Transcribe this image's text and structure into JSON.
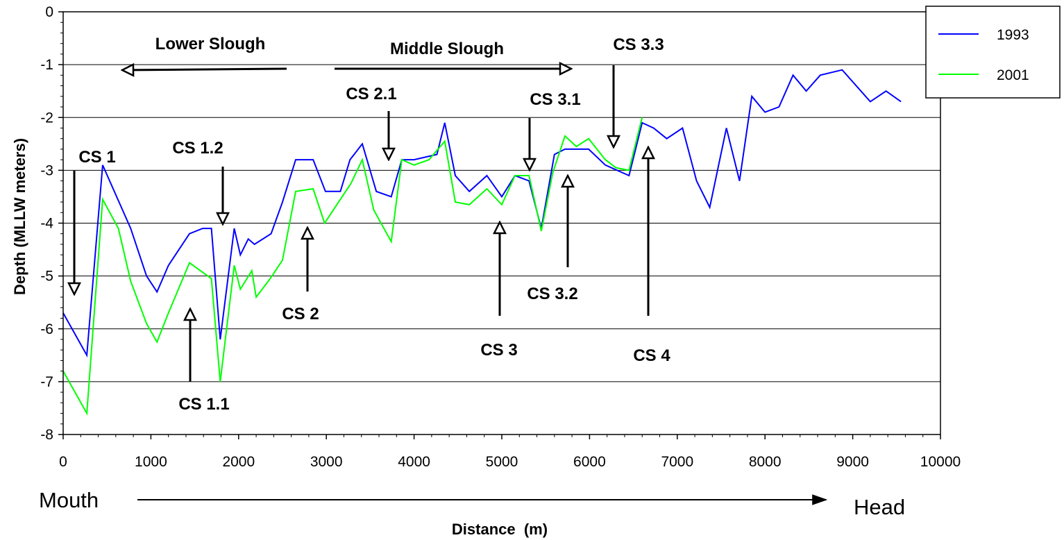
{
  "chart_data": {
    "type": "line",
    "title": "",
    "xlabel": "Distance  (m)",
    "ylabel": "Depth (MLLW meters)",
    "xlim": [
      0,
      10000
    ],
    "ylim": [
      -8,
      0
    ],
    "xticks": [
      0,
      1000,
      2000,
      3000,
      4000,
      5000,
      6000,
      7000,
      8000,
      9000,
      10000
    ],
    "yticks": [
      0,
      -1,
      -2,
      -3,
      -4,
      -5,
      -6,
      -7,
      -8
    ],
    "grid": "horizontal",
    "legend_position": "top-right",
    "series": [
      {
        "name": "1993",
        "color": "#0000ff",
        "points": [
          [
            0,
            -5.7
          ],
          [
            270,
            -6.5
          ],
          [
            450,
            -2.9
          ],
          [
            770,
            -4.1
          ],
          [
            950,
            -5.0
          ],
          [
            1070,
            -5.3
          ],
          [
            1200,
            -4.8
          ],
          [
            1440,
            -4.2
          ],
          [
            1590,
            -4.1
          ],
          [
            1690,
            -4.1
          ],
          [
            1790,
            -6.2
          ],
          [
            1950,
            -4.1
          ],
          [
            2020,
            -4.6
          ],
          [
            2110,
            -4.3
          ],
          [
            2180,
            -4.4
          ],
          [
            2370,
            -4.2
          ],
          [
            2500,
            -3.6
          ],
          [
            2650,
            -2.8
          ],
          [
            2850,
            -2.8
          ],
          [
            2990,
            -3.4
          ],
          [
            3160,
            -3.4
          ],
          [
            3270,
            -2.8
          ],
          [
            3410,
            -2.5
          ],
          [
            3570,
            -3.4
          ],
          [
            3740,
            -3.5
          ],
          [
            3860,
            -2.8
          ],
          [
            4000,
            -2.8
          ],
          [
            4260,
            -2.7
          ],
          [
            4350,
            -2.1
          ],
          [
            4470,
            -3.1
          ],
          [
            4630,
            -3.4
          ],
          [
            4830,
            -3.1
          ],
          [
            5000,
            -3.5
          ],
          [
            5150,
            -3.1
          ],
          [
            5310,
            -3.2
          ],
          [
            5450,
            -4.1
          ],
          [
            5600,
            -2.7
          ],
          [
            5720,
            -2.6
          ],
          [
            5990,
            -2.6
          ],
          [
            6180,
            -2.9
          ],
          [
            6450,
            -3.1
          ],
          [
            6600,
            -2.1
          ],
          [
            6730,
            -2.2
          ],
          [
            6880,
            -2.4
          ],
          [
            7060,
            -2.2
          ],
          [
            7220,
            -3.2
          ],
          [
            7370,
            -3.7
          ],
          [
            7560,
            -2.2
          ],
          [
            7710,
            -3.2
          ],
          [
            7850,
            -1.6
          ],
          [
            8000,
            -1.9
          ],
          [
            8160,
            -1.8
          ],
          [
            8320,
            -1.2
          ],
          [
            8470,
            -1.5
          ],
          [
            8630,
            -1.2
          ],
          [
            8880,
            -1.1
          ],
          [
            9200,
            -1.7
          ],
          [
            9380,
            -1.5
          ],
          [
            9550,
            -1.7
          ]
        ]
      },
      {
        "name": "2001",
        "color": "#00ff00",
        "points": [
          [
            0,
            -6.8
          ],
          [
            270,
            -7.6
          ],
          [
            450,
            -3.55
          ],
          [
            630,
            -4.1
          ],
          [
            770,
            -5.1
          ],
          [
            950,
            -5.9
          ],
          [
            1070,
            -6.25
          ],
          [
            1200,
            -5.7
          ],
          [
            1440,
            -4.75
          ],
          [
            1690,
            -5.05
          ],
          [
            1790,
            -7.0
          ],
          [
            1950,
            -4.8
          ],
          [
            2020,
            -5.25
          ],
          [
            2150,
            -4.9
          ],
          [
            2200,
            -5.4
          ],
          [
            2360,
            -5.05
          ],
          [
            2500,
            -4.7
          ],
          [
            2650,
            -3.4
          ],
          [
            2850,
            -3.35
          ],
          [
            2980,
            -4.0
          ],
          [
            3160,
            -3.55
          ],
          [
            3280,
            -3.25
          ],
          [
            3410,
            -2.8
          ],
          [
            3540,
            -3.75
          ],
          [
            3740,
            -4.35
          ],
          [
            3860,
            -2.8
          ],
          [
            4000,
            -2.9
          ],
          [
            4170,
            -2.8
          ],
          [
            4350,
            -2.45
          ],
          [
            4470,
            -3.6
          ],
          [
            4630,
            -3.65
          ],
          [
            4830,
            -3.35
          ],
          [
            5000,
            -3.65
          ],
          [
            5150,
            -3.1
          ],
          [
            5310,
            -3.1
          ],
          [
            5450,
            -4.15
          ],
          [
            5580,
            -3.05
          ],
          [
            5720,
            -2.35
          ],
          [
            5850,
            -2.55
          ],
          [
            5990,
            -2.4
          ],
          [
            6180,
            -2.8
          ],
          [
            6300,
            -2.95
          ],
          [
            6450,
            -3.0
          ],
          [
            6600,
            -2.0
          ]
        ]
      }
    ]
  },
  "legend": {
    "items": [
      {
        "label": "1993",
        "color": "#0000ff"
      },
      {
        "label": "2001",
        "color": "#00ff00"
      }
    ]
  },
  "annotations": {
    "lower_slough": "Lower Slough",
    "middle_slough": "Middle Slough",
    "mouth": "Mouth",
    "head": "Head",
    "cross_sections": [
      {
        "key": "cs1",
        "label": "CS 1"
      },
      {
        "key": "cs1_1",
        "label": "CS 1.1"
      },
      {
        "key": "cs1_2",
        "label": "CS 1.2"
      },
      {
        "key": "cs2",
        "label": "CS 2"
      },
      {
        "key": "cs2_1",
        "label": "CS 2.1"
      },
      {
        "key": "cs3",
        "label": "CS 3"
      },
      {
        "key": "cs3_1",
        "label": "CS 3.1"
      },
      {
        "key": "cs3_2",
        "label": "CS 3.2"
      },
      {
        "key": "cs3_3",
        "label": "CS 3.3"
      },
      {
        "key": "cs4",
        "label": "CS 4"
      }
    ]
  }
}
